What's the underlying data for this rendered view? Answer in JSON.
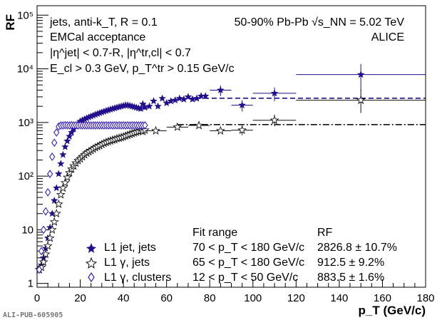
{
  "watermark": "ALI-PUB-605905",
  "chart_data": {
    "type": "scatter",
    "title": "",
    "xlabel": "p_T (GeV/c)",
    "ylabel": "RF",
    "xlim": [
      0,
      180
    ],
    "ylim": [
      0.85,
      150000
    ],
    "yscale": "log",
    "x_ticks": [
      "0",
      "20",
      "40",
      "60",
      "80",
      "100",
      "120",
      "140",
      "160",
      "180"
    ],
    "y_ticks": [
      "1",
      "10",
      "10²",
      "10³",
      "10⁴",
      "10⁵"
    ],
    "grid": false,
    "annotations": {
      "left": [
        "jets, anti-k_T, R = 0.1",
        "EMCal acceptance",
        "|η^jet| < 0.7-R, |η^tr,cl| < 0.7",
        "E_cl > 0.3 GeV, p_T^tr > 0.15 GeV/c"
      ],
      "right": [
        "50-90% Pb-Pb √s_NN = 5.02 TeV",
        "ALICE"
      ]
    },
    "legend": {
      "placement": "bottom",
      "header_fit": "Fit range",
      "header_rf": "RF",
      "rows": [
        {
          "label": "L1 jet, jets",
          "fit": "70 < p_T < 180 GeV/c",
          "rf": "2826.8 ± 10.7%"
        },
        {
          "label": "L1 γ, jets",
          "fit": "65 < p_T < 180 GeV/c",
          "rf": "912.5 ± 9.2%"
        },
        {
          "label": "L1 γ, clusters",
          "fit": "12 < p_T < 50 GeV/c",
          "rf": "883.5 ± 1.6%"
        }
      ]
    },
    "series": [
      {
        "name": "L1 jet, jets",
        "marker": "star-filled",
        "color": "#1f0f8c",
        "x": [
          1,
          2,
          3,
          4,
          5,
          6,
          7,
          8,
          9,
          10,
          11,
          12,
          13,
          14,
          15,
          16,
          17,
          18,
          19,
          20,
          21,
          22,
          23,
          24,
          25,
          26,
          27,
          28,
          29,
          30,
          31,
          32,
          33,
          34,
          35,
          36,
          37,
          38,
          39,
          40,
          41,
          42,
          43,
          44,
          45,
          46,
          47,
          48,
          49,
          50,
          52,
          54,
          56,
          58,
          60,
          62,
          64,
          66,
          68,
          70,
          72,
          74,
          76,
          78,
          85,
          95,
          110,
          150
        ],
        "y": [
          1.8,
          2.2,
          3,
          4.5,
          7,
          11,
          20,
          35,
          60,
          110,
          170,
          250,
          350,
          450,
          550,
          650,
          750,
          850,
          950,
          1050,
          1100,
          1150,
          1200,
          1250,
          1300,
          1350,
          1400,
          1450,
          1500,
          1550,
          1600,
          1650,
          1700,
          1750,
          1800,
          1850,
          1900,
          1950,
          2000,
          2050,
          2100,
          2100,
          2050,
          2000,
          1950,
          1900,
          1850,
          1800,
          2200,
          1900,
          2000,
          2500,
          2000,
          2800,
          2300,
          2500,
          2600,
          2800,
          2700,
          3000,
          2700,
          2800,
          3100,
          3100,
          4000,
          2100,
          3500,
          7800
        ],
        "x_err": [
          0,
          0,
          0,
          0,
          0,
          0,
          0,
          0,
          0,
          0,
          0,
          0,
          0,
          0,
          0,
          0,
          0,
          0,
          0,
          0,
          0,
          0,
          0,
          0,
          0,
          0,
          0,
          0,
          0,
          0,
          0,
          0,
          0,
          0,
          0,
          0,
          0,
          0,
          0,
          0,
          0,
          0,
          0,
          0,
          0,
          0,
          0,
          0,
          0,
          0,
          0,
          0,
          0,
          0,
          0,
          0,
          0,
          0,
          0,
          0,
          0,
          0,
          0,
          0,
          5,
          5,
          10,
          30
        ],
        "y_err_low": [
          0,
          0,
          0,
          0,
          0,
          0,
          0,
          0,
          0,
          0,
          0,
          0,
          0,
          0,
          0,
          0,
          0,
          0,
          0,
          0,
          0,
          0,
          0,
          0,
          0,
          0,
          0,
          0,
          0,
          0,
          0,
          0,
          0,
          0,
          0,
          0,
          0,
          0,
          0,
          0,
          0,
          0,
          0,
          0,
          0,
          0,
          0,
          0,
          0,
          0,
          0,
          0,
          0,
          0,
          0,
          0,
          0,
          0,
          0,
          0,
          0,
          0,
          0,
          0,
          900,
          500,
          1000,
          3900
        ],
        "y_err_high": [
          0,
          0,
          0,
          0,
          0,
          0,
          0,
          0,
          0,
          0,
          0,
          0,
          0,
          0,
          0,
          0,
          0,
          0,
          0,
          0,
          0,
          0,
          0,
          0,
          0,
          0,
          0,
          0,
          0,
          0,
          0,
          0,
          0,
          0,
          0,
          0,
          0,
          0,
          0,
          0,
          0,
          0,
          0,
          0,
          0,
          0,
          0,
          0,
          0,
          0,
          0,
          0,
          0,
          0,
          0,
          0,
          0,
          0,
          0,
          0,
          0,
          0,
          0,
          0,
          900,
          500,
          1000,
          4500
        ]
      },
      {
        "name": "L1 γ, jets",
        "marker": "star-open",
        "color": "#111111",
        "x": [
          1,
          2,
          3,
          4,
          5,
          6,
          7,
          8,
          9,
          10,
          11,
          12,
          13,
          14,
          15,
          16,
          17,
          18,
          19,
          20,
          21,
          22,
          23,
          24,
          25,
          26,
          27,
          28,
          29,
          30,
          31,
          32,
          33,
          34,
          35,
          36,
          37,
          38,
          39,
          40,
          41,
          42,
          43,
          44,
          45,
          46,
          47,
          48,
          49,
          50,
          55,
          65,
          75,
          85,
          95,
          110,
          150
        ],
        "y": [
          1.8,
          2,
          2.5,
          3.5,
          5,
          7,
          10,
          14,
          20,
          30,
          45,
          60,
          75,
          95,
          115,
          135,
          155,
          175,
          195,
          210,
          230,
          250,
          270,
          285,
          300,
          320,
          340,
          355,
          370,
          390,
          410,
          425,
          440,
          455,
          470,
          480,
          500,
          510,
          525,
          540,
          560,
          580,
          600,
          620,
          640,
          660,
          680,
          700,
          680,
          720,
          700,
          820,
          880,
          700,
          720,
          1100,
          2600
        ],
        "x_err": [
          0,
          0,
          0,
          0,
          0,
          0,
          0,
          0,
          0,
          0,
          0,
          0,
          0,
          0,
          0,
          0,
          0,
          0,
          0,
          0,
          0,
          0,
          0,
          0,
          0,
          0,
          0,
          0,
          0,
          0,
          0,
          0,
          0,
          0,
          0,
          0,
          0,
          0,
          0,
          0,
          0,
          0,
          0,
          0,
          0,
          0,
          0,
          0,
          0,
          0,
          5,
          5,
          5,
          5,
          5,
          10,
          30
        ],
        "y_err_low": [
          0,
          0,
          0,
          0,
          0,
          0,
          0,
          0,
          0,
          0,
          0,
          0,
          0,
          0,
          0,
          0,
          0,
          0,
          0,
          0,
          0,
          0,
          0,
          0,
          0,
          0,
          0,
          0,
          0,
          0,
          0,
          0,
          0,
          0,
          0,
          0,
          0,
          0,
          0,
          0,
          0,
          0,
          0,
          0,
          0,
          0,
          0,
          0,
          0,
          0,
          0,
          0,
          0,
          0,
          140,
          250,
          1100
        ],
        "y_err_high": [
          0,
          0,
          0,
          0,
          0,
          0,
          0,
          0,
          0,
          0,
          0,
          0,
          0,
          0,
          0,
          0,
          0,
          0,
          0,
          0,
          0,
          0,
          0,
          0,
          0,
          0,
          0,
          0,
          0,
          0,
          0,
          0,
          0,
          0,
          0,
          0,
          0,
          0,
          0,
          0,
          0,
          0,
          0,
          0,
          0,
          0,
          0,
          0,
          0,
          0,
          0,
          0,
          0,
          0,
          160,
          300,
          1500
        ]
      },
      {
        "name": "L1 γ, clusters",
        "marker": "diamond-open",
        "color": "#3a1fc0",
        "x": [
          1,
          2,
          3,
          4,
          5,
          6,
          7,
          8,
          9,
          10,
          11,
          12,
          13,
          14,
          15,
          16,
          17,
          18,
          19,
          20,
          21,
          22,
          23,
          24,
          25,
          26,
          27,
          28,
          29,
          30,
          31,
          32,
          33,
          34,
          35,
          36,
          37,
          38,
          39,
          40,
          41,
          42,
          43,
          44,
          45,
          46,
          47,
          48,
          49,
          50
        ],
        "y": [
          1.8,
          4,
          10,
          22,
          50,
          110,
          230,
          420,
          650,
          840,
          880,
          880,
          890,
          885,
          880,
          890,
          880,
          885,
          880,
          890,
          880,
          885,
          880,
          885,
          880,
          885,
          880,
          885,
          880,
          885,
          880,
          885,
          880,
          885,
          880,
          885,
          880,
          885,
          880,
          885,
          880,
          885,
          880,
          885,
          880,
          885,
          880,
          885,
          880,
          885
        ]
      }
    ],
    "fits": [
      {
        "series": "L1 jet, jets",
        "value": 2826.8,
        "x_range": [
          70,
          180
        ],
        "style": "dashed",
        "color": "#1f0f8c"
      },
      {
        "series": "L1 γ, jets",
        "value": 912.5,
        "x_range": [
          65,
          180
        ],
        "style": "dash-dot",
        "color": "#111111"
      },
      {
        "series": "L1 γ, clusters",
        "value": 883.5,
        "x_range": [
          12,
          50
        ],
        "style": "dotted",
        "color": "#3a1fc0"
      }
    ]
  }
}
